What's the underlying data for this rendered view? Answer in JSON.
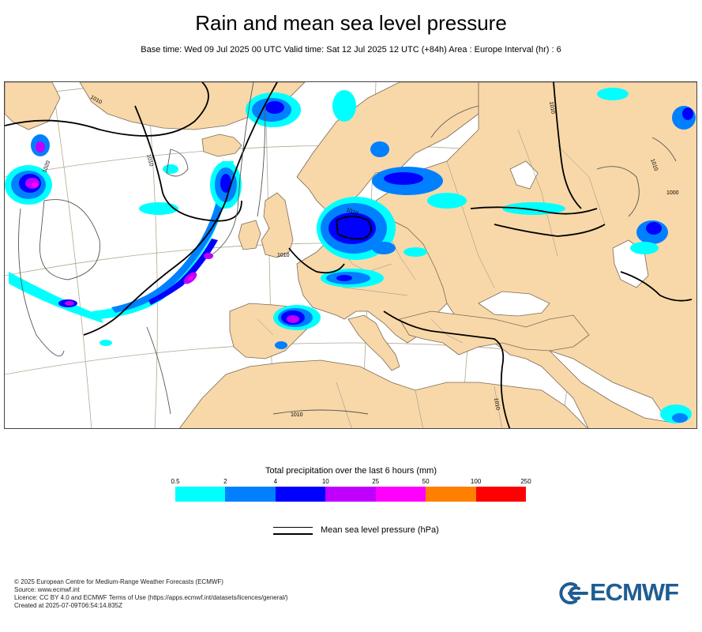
{
  "header": {
    "title": "Rain and mean sea level pressure",
    "subtitle": "Base time: Wed 09 Jul 2025 00 UTC Valid time: Sat 12 Jul 2025 12 UTC (+84h) Area : Europe Interval (hr) : 6"
  },
  "map": {
    "isobar_labels": [
      "1010",
      "1020",
      "1010",
      "1010",
      "1010",
      "1010",
      "1000",
      "1010",
      "1010",
      "1010"
    ],
    "colors": {
      "land": "#f8d8a8",
      "sea": "#ffffff",
      "coast": "#7a6a58",
      "border": "#8a8a8a",
      "graticule": "#b0a890",
      "isobar_thin": "#555555",
      "isobar_thick": "#000000"
    }
  },
  "legend": {
    "title": "Total precipitation over the last 6 hours (mm)",
    "ticks": [
      "0.5",
      "2",
      "4",
      "10",
      "25",
      "50",
      "100",
      "250"
    ],
    "colors": [
      "#00ffff",
      "#0080ff",
      "#0000ff",
      "#c000ff",
      "#ff00ff",
      "#ff8000",
      "#ff0000"
    ]
  },
  "mslp_legend": {
    "label": "Mean sea level pressure (hPa)"
  },
  "footer": {
    "lines": [
      "© 2025 European Centre for Medium-Range Weather Forecasts (ECMWF)",
      "Source: www.ecmwf.int",
      "Licence: CC BY 4.0 and ECMWF Terms of Use (https://apps.ecmwf.int/datasets/licences/general/)",
      "Created at 2025-07-09T06:54:14.835Z"
    ]
  },
  "logo": {
    "text": "ECMWF",
    "color": "#1f5d92"
  }
}
